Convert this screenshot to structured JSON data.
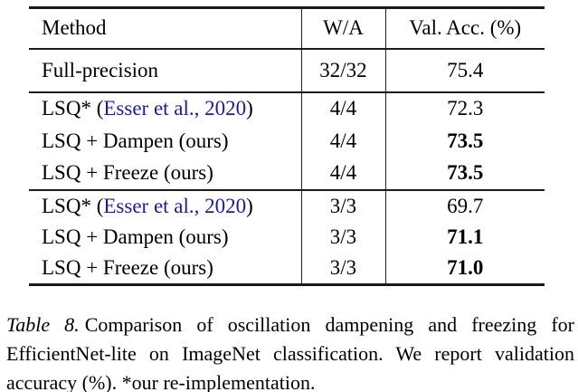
{
  "table": {
    "header": {
      "method": "Method",
      "wa": "W/A",
      "acc": "Val. Acc. (%)"
    },
    "rows": [
      {
        "prefix": "Full-precision",
        "citation": "",
        "suffix": "",
        "wa": "32/32",
        "acc": "75.4"
      },
      {
        "prefix": "LSQ* (",
        "citation": "Esser et al., 2020",
        "suffix": ")",
        "wa": "4/4",
        "acc": "72.3"
      },
      {
        "prefix": "LSQ + Dampen (ours)",
        "citation": "",
        "suffix": "",
        "wa": "4/4",
        "acc": "73.5"
      },
      {
        "prefix": "LSQ + Freeze (ours)",
        "citation": "",
        "suffix": "",
        "wa": "4/4",
        "acc": "73.5"
      },
      {
        "prefix": "LSQ* (",
        "citation": "Esser et al., 2020",
        "suffix": ")",
        "wa": "3/3",
        "acc": "69.7"
      },
      {
        "prefix": "LSQ + Dampen (ours)",
        "citation": "",
        "suffix": "",
        "wa": "3/3",
        "acc": "71.1"
      },
      {
        "prefix": "LSQ + Freeze (ours)",
        "citation": "",
        "suffix": "",
        "wa": "3/3",
        "acc": "71.0"
      }
    ]
  },
  "caption": {
    "label": "Table 8.",
    "text": "Comparison of oscillation dampening and freezing for EfficientNet-lite on ImageNet classification. We report validation accuracy (%). *our re-implementation."
  },
  "colors": {
    "citation_link": "#1c1c9c",
    "rule": "#1a1a1a"
  }
}
